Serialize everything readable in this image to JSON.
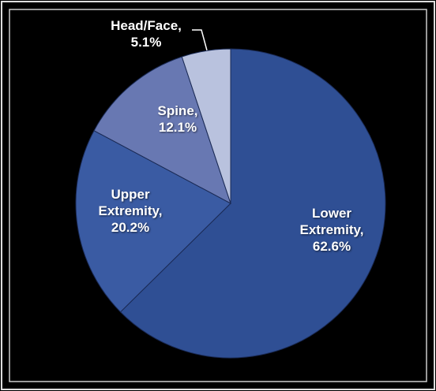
{
  "chart_data": {
    "type": "pie",
    "categories": [
      "Lower Extremity,",
      "Upper Extremity,",
      "Spine,",
      "Head/Face,"
    ],
    "values": [
      62.6,
      20.2,
      12.1,
      5.1
    ],
    "value_labels": [
      "62.6%",
      "20.2%",
      "12.1%",
      "5.1%"
    ],
    "colors": [
      "#2f4f94",
      "#3a5ba3",
      "#6878b2",
      "#b9c2de"
    ]
  }
}
